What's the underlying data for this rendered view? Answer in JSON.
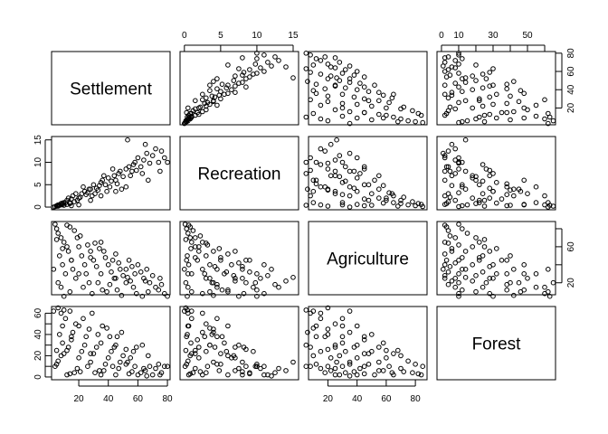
{
  "chart_data": {
    "type": "scatter",
    "subtype": "scatterplot-matrix",
    "variables": [
      "Settlement",
      "Recreation",
      "Agriculture",
      "Forest"
    ],
    "axis_limits": {
      "Settlement": [
        1.6,
        81.8
      ],
      "Recreation": [
        -0.6,
        15.75
      ],
      "Agriculture": [
        6.7,
        88
      ],
      "Forest": [
        -2.6,
        66.3
      ]
    },
    "axes": {
      "Settlement": {
        "side": "bottom+right",
        "ticks": [
          20,
          40,
          60,
          80
        ],
        "bottom_labels": [
          "20",
          "40",
          "60",
          "80"
        ],
        "right_labels": [
          "20",
          "40",
          "60",
          "80"
        ]
      },
      "Recreation": {
        "side": "top+left",
        "ticks": [
          0,
          5,
          10,
          15
        ],
        "top_labels": [
          "0",
          "5",
          "10",
          "15"
        ],
        "left_labels": [
          "0",
          "5",
          "10",
          "15"
        ]
      },
      "Agriculture": {
        "side": "bottom+right",
        "ticks": [
          20,
          40,
          60,
          80
        ],
        "bottom_labels": [
          "20",
          "40",
          "60",
          "80"
        ],
        "right_labels": [
          "20",
          "",
          "60",
          ""
        ]
      },
      "Forest": {
        "side": "top+left",
        "ticks": [
          0,
          10,
          20,
          30,
          40,
          50,
          60
        ],
        "top_labels": [
          "0",
          "10",
          "",
          "30",
          "",
          "50",
          ""
        ],
        "left_labels": [
          "0",
          "",
          "20",
          "",
          "40",
          "",
          "60"
        ]
      }
    },
    "grid": false,
    "columns": [
      "Settlement",
      "Recreation",
      "Agriculture",
      "Forest"
    ],
    "points": [
      [
        5,
        0.3,
        80,
        12
      ],
      [
        6,
        0.5,
        75,
        15
      ],
      [
        8,
        0.8,
        70,
        20
      ],
      [
        10,
        1,
        65,
        22
      ],
      [
        12,
        1.5,
        60,
        25
      ],
      [
        7,
        0.4,
        50,
        40
      ],
      [
        9,
        0.6,
        40,
        48
      ],
      [
        11,
        1,
        30,
        55
      ],
      [
        6,
        0.2,
        20,
        65
      ],
      [
        8,
        0.5,
        15,
        60
      ],
      [
        13,
        2,
        55,
        28
      ],
      [
        15,
        1.8,
        45,
        35
      ],
      [
        16,
        2.5,
        35,
        42
      ],
      [
        18,
        3,
        25,
        50
      ],
      [
        14,
        1,
        10,
        62
      ],
      [
        20,
        2,
        60,
        18
      ],
      [
        22,
        3,
        50,
        24
      ],
      [
        24,
        3.5,
        40,
        30
      ],
      [
        25,
        2.8,
        30,
        38
      ],
      [
        27,
        4,
        20,
        45
      ],
      [
        19,
        1.5,
        70,
        8
      ],
      [
        21,
        2.2,
        72,
        5
      ],
      [
        23,
        4.5,
        15,
        55
      ],
      [
        26,
        3.2,
        62,
        10
      ],
      [
        28,
        4,
        55,
        14
      ],
      [
        30,
        5,
        45,
        22
      ],
      [
        32,
        4.2,
        38,
        28
      ],
      [
        35,
        5.5,
        30,
        32
      ],
      [
        33,
        3.8,
        20,
        40
      ],
      [
        36,
        6,
        12,
        48
      ],
      [
        29,
        2.5,
        8,
        60
      ],
      [
        31,
        3,
        64,
        4
      ],
      [
        34,
        4.8,
        58,
        6
      ],
      [
        38,
        5,
        48,
        12
      ],
      [
        40,
        6.5,
        40,
        18
      ],
      [
        42,
        5.8,
        32,
        24
      ],
      [
        44,
        7,
        25,
        28
      ],
      [
        41,
        4.5,
        18,
        38
      ],
      [
        39,
        3.5,
        10,
        46
      ],
      [
        45,
        6,
        52,
        2
      ],
      [
        47,
        7.5,
        42,
        8
      ],
      [
        48,
        8,
        35,
        14
      ],
      [
        50,
        6.8,
        28,
        20
      ],
      [
        52,
        8.5,
        20,
        26
      ],
      [
        46,
        5.2,
        12,
        38
      ],
      [
        49,
        4,
        6,
        42
      ],
      [
        54,
        9,
        45,
        3
      ],
      [
        56,
        8,
        38,
        5
      ],
      [
        58,
        10,
        30,
        10
      ],
      [
        55,
        7,
        22,
        18
      ],
      [
        57,
        9.5,
        15,
        24
      ],
      [
        60,
        11,
        40,
        2
      ],
      [
        62,
        9,
        32,
        4
      ],
      [
        59,
        8.2,
        8,
        28
      ],
      [
        64,
        10.5,
        25,
        8
      ],
      [
        66,
        12,
        35,
        1
      ],
      [
        68,
        9.8,
        20,
        10
      ],
      [
        70,
        11.5,
        28,
        2
      ],
      [
        72,
        13,
        15,
        8
      ],
      [
        65,
        14,
        22,
        6
      ],
      [
        74,
        10,
        12,
        12
      ],
      [
        76,
        12.5,
        18,
        4
      ],
      [
        78,
        11,
        8,
        10
      ],
      [
        63,
        7.5,
        5,
        30
      ],
      [
        53,
        15,
        26,
        14
      ],
      [
        43,
        8.5,
        45,
        10
      ],
      [
        37,
        7,
        55,
        6
      ],
      [
        17,
        1.2,
        78,
        4
      ],
      [
        14,
        0.8,
        82,
        3
      ],
      [
        12,
        0.6,
        84,
        2
      ],
      [
        4,
        0.1,
        85,
        10
      ],
      [
        5,
        0.2,
        68,
        25
      ],
      [
        9,
        0.9,
        58,
        32
      ],
      [
        3,
        0,
        35,
        62
      ],
      [
        10,
        0.4,
        5,
        63
      ],
      [
        15,
        0.3,
        45,
        38
      ],
      [
        20,
        0.5,
        30,
        48
      ],
      [
        28,
        1.5,
        48,
        22
      ],
      [
        35,
        2.5,
        65,
        2
      ],
      [
        45,
        3.5,
        25,
        30
      ],
      [
        52,
        4.5,
        35,
        12
      ],
      [
        67,
        6,
        10,
        20
      ],
      [
        75,
        8,
        25,
        2
      ],
      [
        80,
        10,
        5,
        10
      ]
    ]
  }
}
